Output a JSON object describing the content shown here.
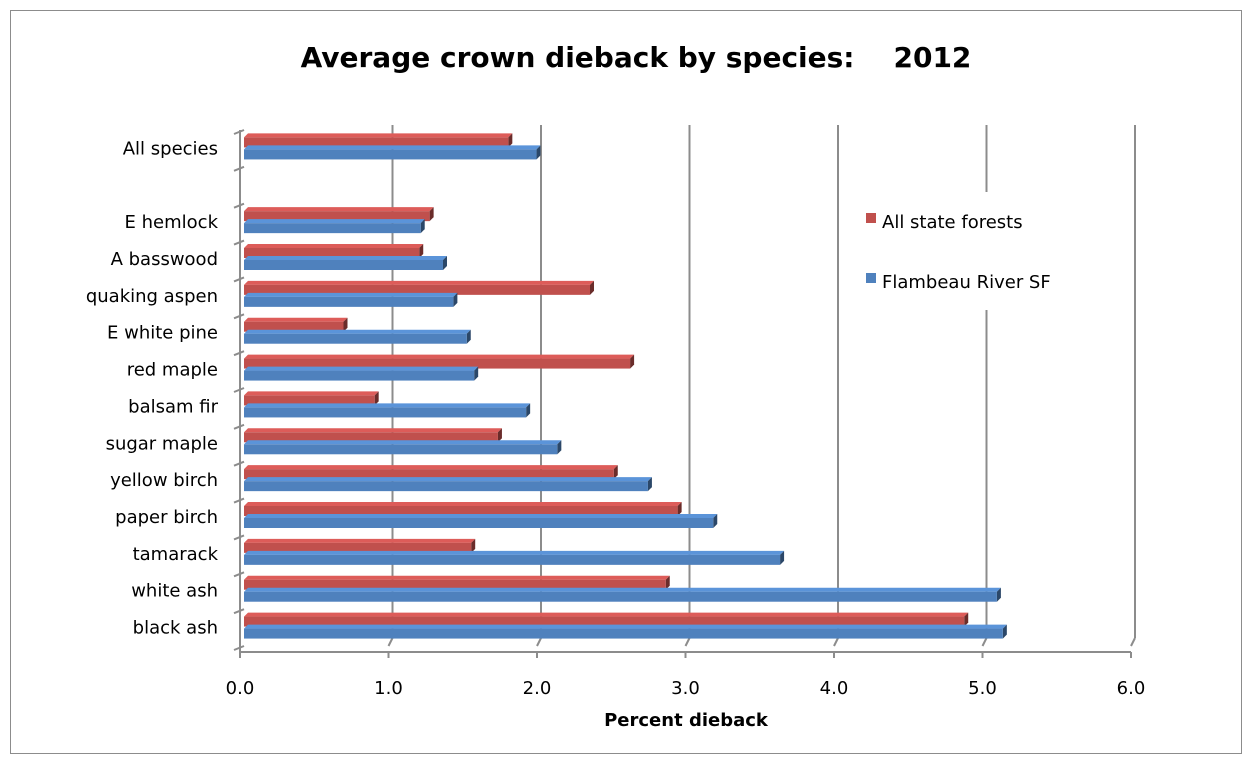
{
  "chart_data": {
    "type": "bar",
    "orientation": "horizontal",
    "style": "3d",
    "title": "Average crown dieback by species:    2012",
    "xlabel": "Percent dieback",
    "ylabel": "",
    "xlim": [
      0,
      6
    ],
    "x_ticks": [
      "0.0",
      "1.0",
      "2.0",
      "3.0",
      "4.0",
      "5.0",
      "6.0"
    ],
    "grid": "vertical",
    "legend_position": "right",
    "categories": [
      "All species",
      "",
      "E hemlock",
      "A basswood",
      "quaking aspen",
      "E white pine",
      "red maple",
      "balsam fir",
      "sugar maple",
      "yellow birch",
      "paper birch",
      "tamarack",
      "white ash",
      "black ash"
    ],
    "series": [
      {
        "name": "All state forests",
        "color": "#C0504D",
        "values": [
          1.78,
          null,
          1.25,
          1.18,
          2.33,
          0.67,
          2.6,
          0.88,
          1.71,
          2.49,
          2.92,
          1.53,
          2.84,
          4.85
        ]
      },
      {
        "name": "Flambeau River SF",
        "color": "#4F81BD",
        "values": [
          1.97,
          null,
          1.19,
          1.34,
          1.41,
          1.5,
          1.55,
          1.9,
          2.11,
          2.72,
          3.16,
          3.61,
          5.07,
          5.11
        ]
      }
    ]
  }
}
